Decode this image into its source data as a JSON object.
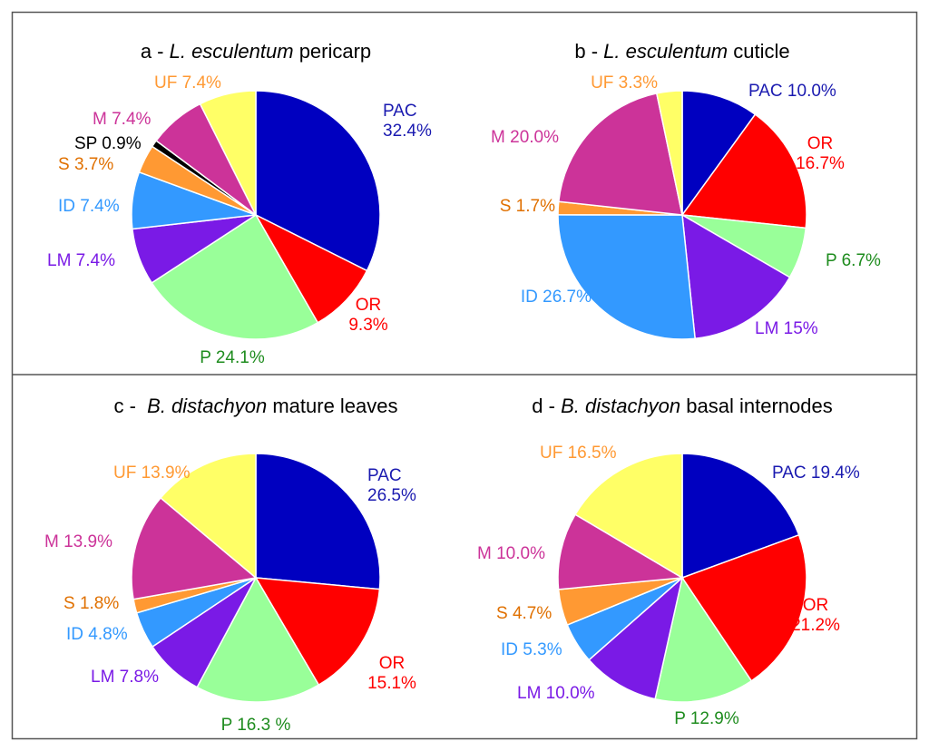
{
  "chart_data": [
    {
      "type": "pie",
      "title_prefix": "a - ",
      "title_species": "L. esculentum",
      "title_suffix": " pericarp",
      "slices": [
        {
          "name": "PAC",
          "value": 32.4,
          "label": [
            "PAC",
            "32.4%"
          ],
          "color": "#0000c0",
          "text_color": "#1a1ab0"
        },
        {
          "name": "OR",
          "value": 9.3,
          "label": [
            "OR",
            "9.3%"
          ],
          "color": "#ff0000",
          "text_color": "#ff0000"
        },
        {
          "name": "P",
          "value": 24.1,
          "label": [
            "P 24.1%"
          ],
          "color": "#99ff99",
          "text_color": "#1e8c1e"
        },
        {
          "name": "LM",
          "value": 7.4,
          "label": [
            "LM 7.4%"
          ],
          "color": "#7a1ae6",
          "text_color": "#7a1ae6"
        },
        {
          "name": "ID",
          "value": 7.4,
          "label": [
            "ID 7.4%"
          ],
          "color": "#3399ff",
          "text_color": "#3399ff"
        },
        {
          "name": "S",
          "value": 3.7,
          "label": [
            "S 3.7%"
          ],
          "color": "#ff9933",
          "text_color": "#e07000"
        },
        {
          "name": "SP",
          "value": 0.9,
          "label": [
            "SP 0.9%"
          ],
          "color": "#000000",
          "text_color": "#000000"
        },
        {
          "name": "M",
          "value": 7.4,
          "label": [
            "M 7.4%"
          ],
          "color": "#cc3399",
          "text_color": "#cc3399"
        },
        {
          "name": "UF",
          "value": 7.4,
          "label": [
            "UF 7.4%"
          ],
          "color": "#ffff66",
          "text_color": "#ff9933"
        }
      ]
    },
    {
      "type": "pie",
      "title_prefix": "b - ",
      "title_species": "L. esculentum",
      "title_suffix": " cuticle",
      "slices": [
        {
          "name": "PAC",
          "value": 10.0,
          "label": [
            "PAC 10.0%"
          ],
          "color": "#0000c0",
          "text_color": "#1a1ab0"
        },
        {
          "name": "OR",
          "value": 16.7,
          "label": [
            "OR",
            "16.7%"
          ],
          "color": "#ff0000",
          "text_color": "#ff0000"
        },
        {
          "name": "P",
          "value": 6.7,
          "label": [
            "P 6.7%"
          ],
          "color": "#99ff99",
          "text_color": "#1e8c1e"
        },
        {
          "name": "LM",
          "value": 15,
          "label": [
            "LM 15%"
          ],
          "color": "#7a1ae6",
          "text_color": "#7a1ae6"
        },
        {
          "name": "ID",
          "value": 26.7,
          "label": [
            "ID 26.7%"
          ],
          "color": "#3399ff",
          "text_color": "#3399ff"
        },
        {
          "name": "S",
          "value": 1.7,
          "label": [
            "S 1.7%"
          ],
          "color": "#ff9933",
          "text_color": "#e07000"
        },
        {
          "name": "M",
          "value": 20.0,
          "label": [
            "M 20.0%"
          ],
          "color": "#cc3399",
          "text_color": "#cc3399"
        },
        {
          "name": "UF",
          "value": 3.3,
          "label": [
            "UF 3.3%"
          ],
          "color": "#ffff66",
          "text_color": "#ff9933"
        }
      ]
    },
    {
      "type": "pie",
      "title_prefix": "c -  ",
      "title_species": "B. distachyon",
      "title_suffix": " mature leaves",
      "slices": [
        {
          "name": "PAC",
          "value": 26.5,
          "label": [
            "PAC",
            "26.5%"
          ],
          "color": "#0000c0",
          "text_color": "#1a1ab0"
        },
        {
          "name": "OR",
          "value": 15.1,
          "label": [
            "OR",
            "15.1%"
          ],
          "color": "#ff0000",
          "text_color": "#ff0000"
        },
        {
          "name": "P",
          "value": 16.3,
          "label": [
            "P 16.3 %"
          ],
          "color": "#99ff99",
          "text_color": "#1e8c1e"
        },
        {
          "name": "LM",
          "value": 7.8,
          "label": [
            "LM 7.8%"
          ],
          "color": "#7a1ae6",
          "text_color": "#7a1ae6"
        },
        {
          "name": "ID",
          "value": 4.8,
          "label": [
            "ID 4.8%"
          ],
          "color": "#3399ff",
          "text_color": "#3399ff"
        },
        {
          "name": "S",
          "value": 1.8,
          "label": [
            "S 1.8%"
          ],
          "color": "#ff9933",
          "text_color": "#e07000"
        },
        {
          "name": "M",
          "value": 13.9,
          "label": [
            "M 13.9%"
          ],
          "color": "#cc3399",
          "text_color": "#cc3399"
        },
        {
          "name": "UF",
          "value": 13.9,
          "label": [
            "UF 13.9%"
          ],
          "color": "#ffff66",
          "text_color": "#ff9933"
        }
      ]
    },
    {
      "type": "pie",
      "title_prefix": "d - ",
      "title_species": "B. distachyon",
      "title_suffix": " basal internodes",
      "slices": [
        {
          "name": "PAC",
          "value": 19.4,
          "label": [
            "PAC 19.4%"
          ],
          "color": "#0000c0",
          "text_color": "#1a1ab0"
        },
        {
          "name": "OR",
          "value": 21.2,
          "label": [
            "OR",
            "21.2%"
          ],
          "color": "#ff0000",
          "text_color": "#ff0000"
        },
        {
          "name": "P",
          "value": 12.9,
          "label": [
            "P 12.9%"
          ],
          "color": "#99ff99",
          "text_color": "#1e8c1e"
        },
        {
          "name": "LM",
          "value": 10.0,
          "label": [
            "LM 10.0%"
          ],
          "color": "#7a1ae6",
          "text_color": "#7a1ae6"
        },
        {
          "name": "ID",
          "value": 5.3,
          "label": [
            "ID 5.3%"
          ],
          "color": "#3399ff",
          "text_color": "#3399ff"
        },
        {
          "name": "S",
          "value": 4.7,
          "label": [
            "S 4.7%"
          ],
          "color": "#ff9933",
          "text_color": "#e07000"
        },
        {
          "name": "M",
          "value": 10.0,
          "label": [
            "M 10.0%"
          ],
          "color": "#cc3399",
          "text_color": "#cc3399"
        },
        {
          "name": "UF",
          "value": 16.5,
          "label": [
            "UF 16.5%"
          ],
          "color": "#ffff66",
          "text_color": "#ff9933"
        }
      ]
    }
  ]
}
